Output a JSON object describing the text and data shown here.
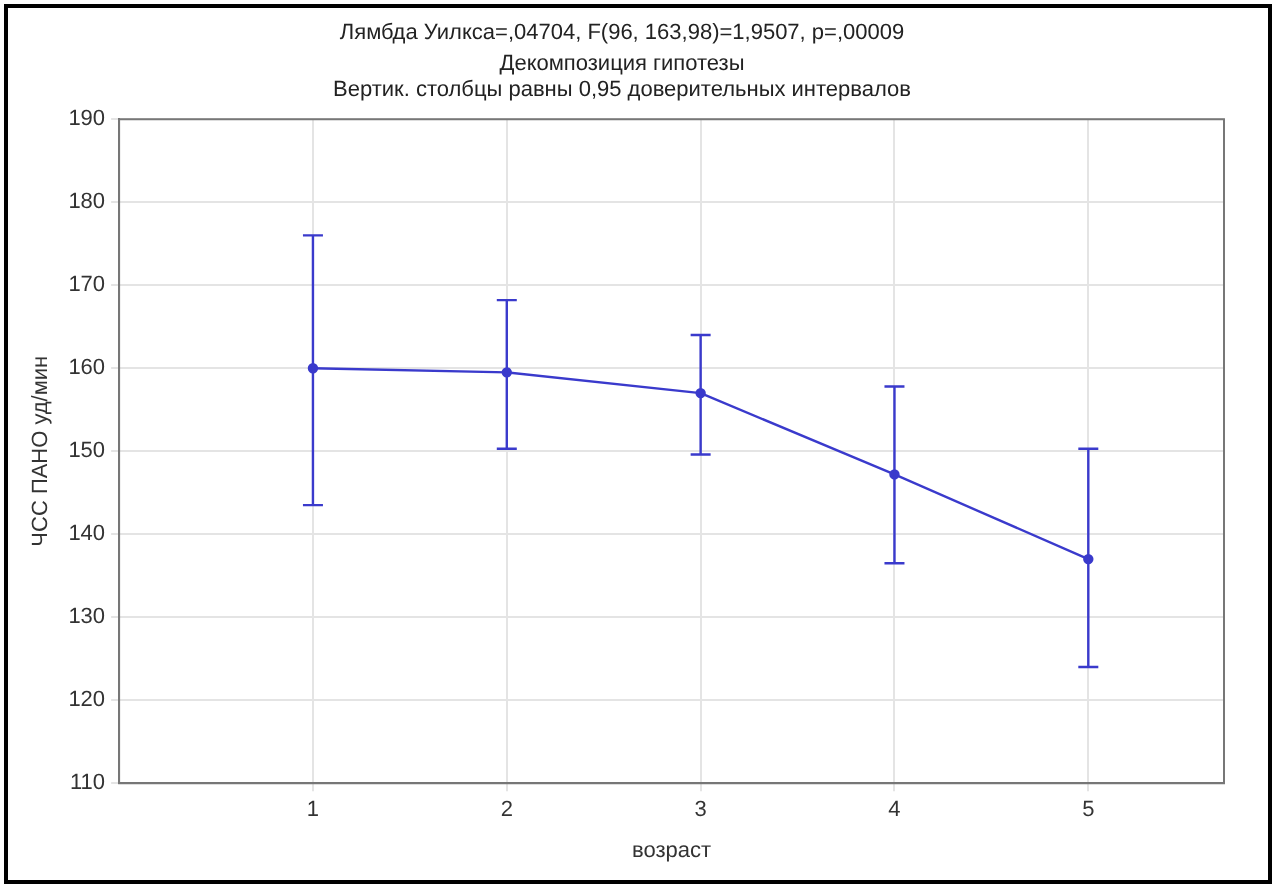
{
  "chart_data": {
    "type": "line",
    "title": "Лямбда Уилкса=,04704, F(96, 163,98)=1,9507, p=,00009",
    "subtitle": [
      "Декомпозиция гипотезы",
      "Вертик. столбцы равны 0,95 доверительных интервалов"
    ],
    "xlabel": "возраст",
    "ylabel": "ЧСС ПАНО уд/мин",
    "x": [
      1,
      2,
      3,
      4,
      5
    ],
    "series": [
      {
        "color": "#3a3acc",
        "values": [
          160,
          159.5,
          157,
          147.2,
          137
        ],
        "errors": [
          [
            143.5,
            176
          ],
          [
            150.3,
            168.2
          ],
          [
            149.6,
            164
          ],
          [
            136.5,
            157.8
          ],
          [
            124,
            150.3
          ]
        ]
      }
    ],
    "xlim": [
      0,
      5.7
    ],
    "xticks": [
      1,
      2,
      3,
      4,
      5
    ],
    "ylim": [
      110,
      190
    ],
    "yticks": [
      110,
      120,
      130,
      140,
      150,
      160,
      170,
      180,
      190
    ],
    "grid": true,
    "legend": false,
    "marker": "circle",
    "line_style": "solid"
  }
}
